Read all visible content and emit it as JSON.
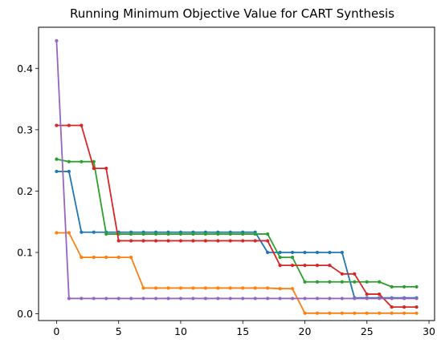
{
  "chart_data": {
    "type": "line",
    "title": "Running Minimum Objective Value for CART Synthesis",
    "xlabel": "",
    "ylabel": "",
    "xlim": [
      -1.45,
      30.45
    ],
    "ylim": [
      -0.011,
      0.467
    ],
    "xticks": [
      0,
      5,
      10,
      15,
      20,
      25,
      30
    ],
    "yticks": [
      0.0,
      0.1,
      0.2,
      0.3,
      0.4
    ],
    "ytick_labels": [
      "0.0",
      "0.1",
      "0.2",
      "0.3",
      "0.4"
    ],
    "grid": false,
    "x": [
      0,
      1,
      2,
      3,
      4,
      5,
      6,
      7,
      8,
      9,
      10,
      11,
      12,
      13,
      14,
      15,
      16,
      17,
      18,
      19,
      20,
      21,
      22,
      23,
      24,
      25,
      26,
      27,
      28,
      29
    ],
    "series": [
      {
        "color": "#1f77b4",
        "values": [
          0.232,
          0.232,
          0.133,
          0.133,
          0.133,
          0.133,
          0.133,
          0.133,
          0.133,
          0.133,
          0.133,
          0.133,
          0.133,
          0.133,
          0.133,
          0.133,
          0.133,
          0.1,
          0.1,
          0.1,
          0.1,
          0.1,
          0.1,
          0.1,
          0.026,
          0.026,
          0.026,
          0.026,
          0.026,
          0.026
        ]
      },
      {
        "color": "#ff7f0e",
        "values": [
          0.132,
          0.132,
          0.092,
          0.092,
          0.092,
          0.092,
          0.092,
          0.042,
          0.042,
          0.042,
          0.042,
          0.042,
          0.042,
          0.042,
          0.042,
          0.042,
          0.042,
          0.042,
          0.041,
          0.041,
          0.001,
          0.001,
          0.001,
          0.001,
          0.001,
          0.001,
          0.001,
          0.001,
          0.001,
          0.001
        ]
      },
      {
        "color": "#2ca02c",
        "values": [
          0.252,
          0.248,
          0.248,
          0.248,
          0.13,
          0.13,
          0.13,
          0.13,
          0.13,
          0.13,
          0.13,
          0.13,
          0.13,
          0.13,
          0.13,
          0.13,
          0.13,
          0.13,
          0.092,
          0.092,
          0.052,
          0.052,
          0.052,
          0.052,
          0.052,
          0.052,
          0.052,
          0.044,
          0.044,
          0.044
        ]
      },
      {
        "color": "#d62728",
        "values": [
          0.307,
          0.307,
          0.307,
          0.237,
          0.237,
          0.119,
          0.119,
          0.119,
          0.119,
          0.119,
          0.119,
          0.119,
          0.119,
          0.119,
          0.119,
          0.119,
          0.119,
          0.119,
          0.079,
          0.079,
          0.079,
          0.079,
          0.079,
          0.065,
          0.065,
          0.032,
          0.032,
          0.011,
          0.011,
          0.011
        ]
      },
      {
        "color": "#9467bd",
        "values": [
          0.445,
          0.025,
          0.025,
          0.025,
          0.025,
          0.025,
          0.025,
          0.025,
          0.025,
          0.025,
          0.025,
          0.025,
          0.025,
          0.025,
          0.025,
          0.025,
          0.025,
          0.025,
          0.025,
          0.025,
          0.025,
          0.025,
          0.025,
          0.025,
          0.025,
          0.025,
          0.025,
          0.025,
          0.025,
          0.025
        ]
      }
    ]
  }
}
